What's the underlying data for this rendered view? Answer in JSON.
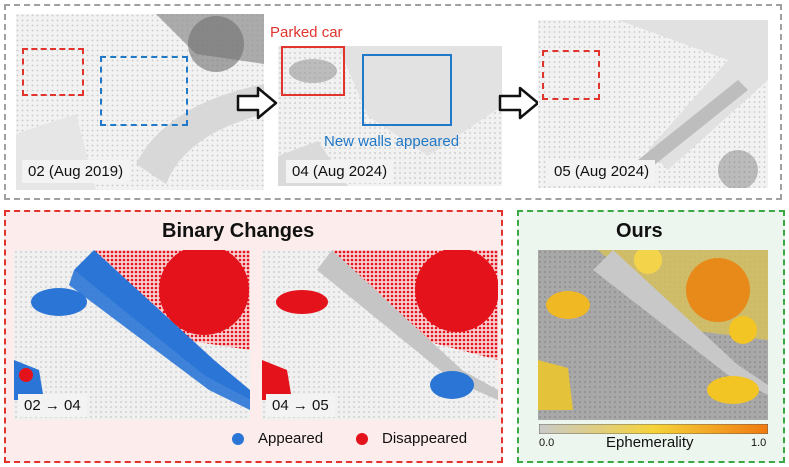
{
  "top": {
    "frames": [
      {
        "label": "02 (Aug 2019)"
      },
      {
        "label": "04 (Aug 2024)"
      },
      {
        "label": "05 (Aug 2024)"
      }
    ],
    "annotations": {
      "parked_car": "Parked car",
      "new_walls": "New walls appeared"
    }
  },
  "binary": {
    "title": "Binary Changes",
    "pairs": [
      {
        "label": "02 → 04"
      },
      {
        "label": "04 → 05"
      }
    ],
    "legend": {
      "appeared": "Appeared",
      "disappeared": "Disappeared"
    }
  },
  "ours": {
    "title": "Ours",
    "colorbar": {
      "label": "Ephemerality",
      "min": "0.0",
      "max": "1.0"
    }
  },
  "colors": {
    "red": "#e0342d",
    "blue": "#1f78c8",
    "green": "#3aa843",
    "appeared": "#2a75d6",
    "disappeared": "#e3121b"
  }
}
